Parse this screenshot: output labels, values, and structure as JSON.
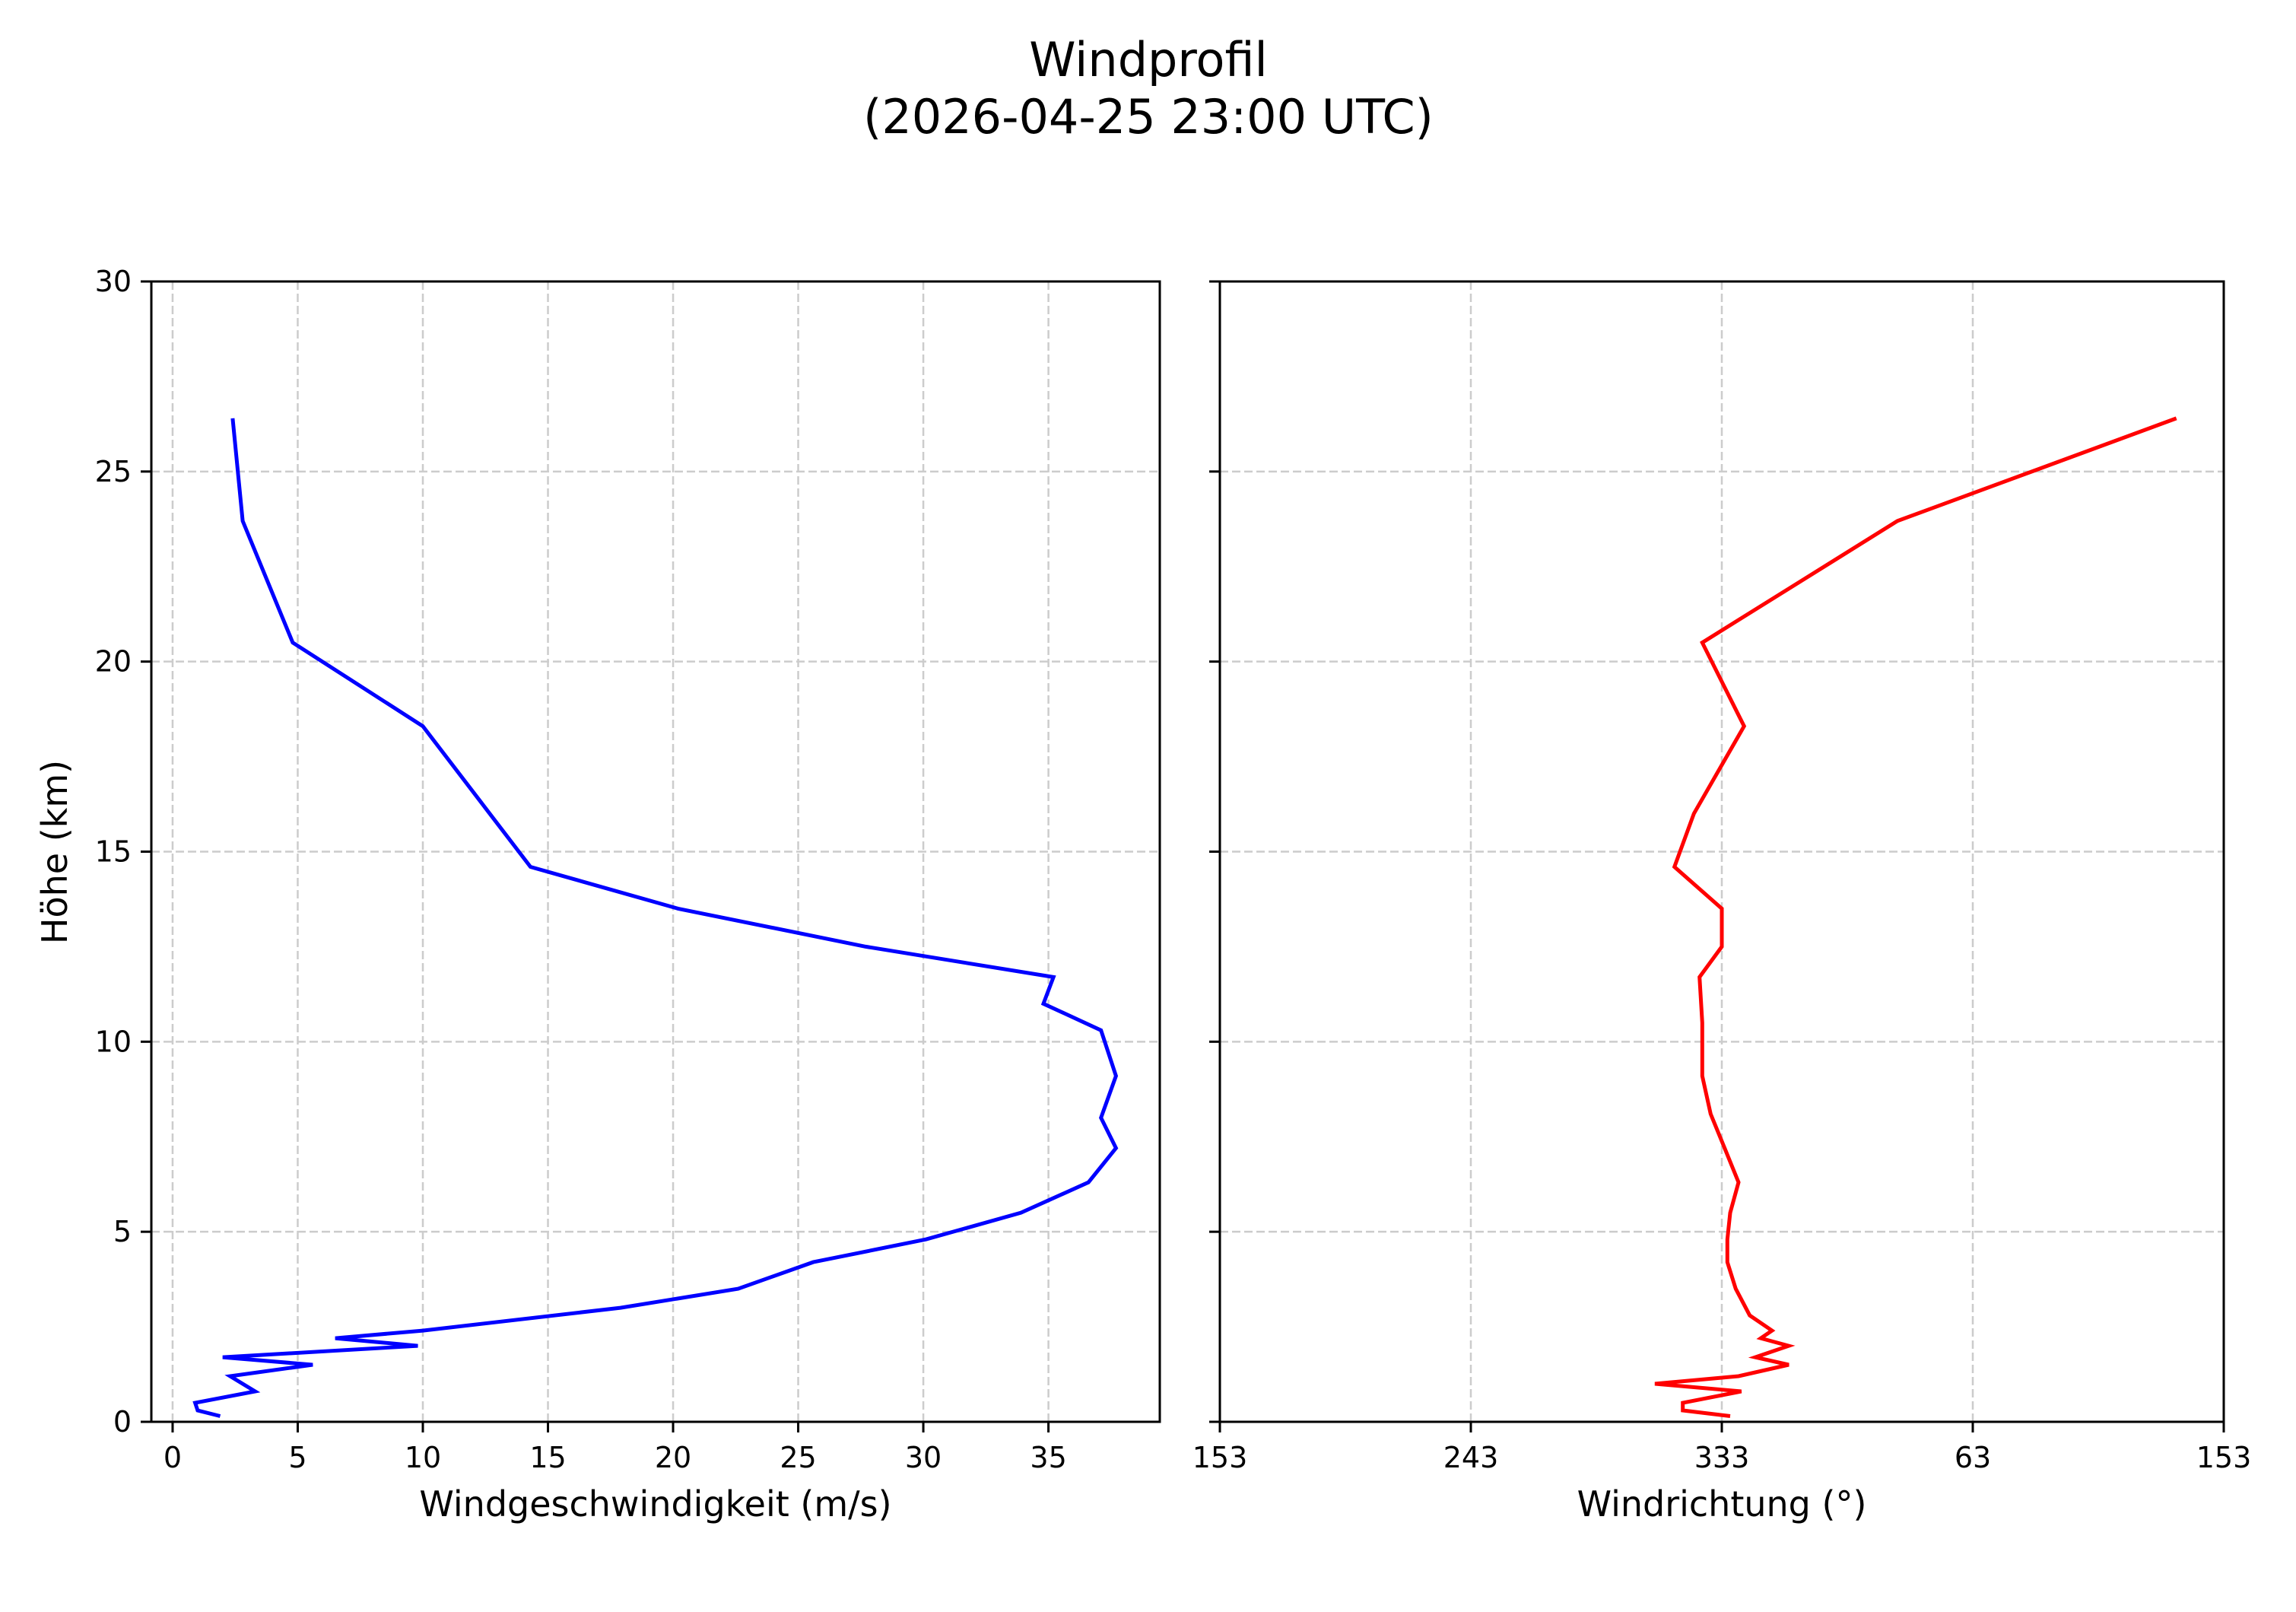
{
  "figure": {
    "title_line1": "Windprofil",
    "title_line2": "(2026-04-25 23:00 UTC)",
    "background": "#ffffff"
  },
  "chart_data": [
    {
      "type": "line",
      "panel": "left",
      "title": "Windprofil (2026-04-25 23:00 UTC)",
      "xlabel": "Windgeschwindigkeit (m/s)",
      "ylabel": "Höhe (km)",
      "xlim": [
        -0.85,
        39.45
      ],
      "ylim": [
        0,
        30
      ],
      "xticks": [
        0,
        5,
        10,
        15,
        20,
        25,
        30,
        35
      ],
      "xtick_labels": [
        "0",
        "5",
        "10",
        "15",
        "20",
        "25",
        "30",
        "35"
      ],
      "yticks": [
        0,
        5,
        10,
        15,
        20,
        25,
        30
      ],
      "ytick_labels": [
        "0",
        "5",
        "10",
        "15",
        "20",
        "25",
        "30"
      ],
      "grid": true,
      "color": "#0000ff",
      "series": [
        {
          "name": "Windgeschwindigkeit",
          "x": [
            1.9,
            1.0,
            0.9,
            3.3,
            2.3,
            5.6,
            2.0,
            9.8,
            6.5,
            10.0,
            17.9,
            22.6,
            25.6,
            30.1,
            33.9,
            36.6,
            37.7,
            37.1,
            37.7,
            37.1,
            34.8,
            35.2,
            27.7,
            20.2,
            14.3,
            10.0,
            4.8,
            2.8,
            2.4
          ],
          "y": [
            0.15,
            0.3,
            0.5,
            0.8,
            1.2,
            1.5,
            1.7,
            2.0,
            2.2,
            2.4,
            3.0,
            3.5,
            4.2,
            4.8,
            5.5,
            6.3,
            7.2,
            8.0,
            9.1,
            10.3,
            11.0,
            11.7,
            12.5,
            13.5,
            14.6,
            18.3,
            20.5,
            23.7,
            26.4
          ]
        }
      ]
    },
    {
      "type": "line",
      "panel": "right",
      "xlabel": "Windrichtung (°)",
      "ylabel": "",
      "xlim": [
        153,
        513
      ],
      "ylim": [
        0,
        30
      ],
      "xticks": [
        153,
        243,
        333,
        423,
        513
      ],
      "xtick_labels": [
        "153",
        "243",
        "333",
        "63",
        "153"
      ],
      "yticks": [
        0,
        5,
        10,
        15,
        20,
        25,
        30
      ],
      "ytick_labels_shown": false,
      "grid": true,
      "color": "#ff0000",
      "series": [
        {
          "name": "Windrichtung",
          "x": [
            336,
            319,
            319,
            340,
            309,
            339,
            357,
            345,
            357,
            347,
            351,
            343,
            338,
            335,
            335,
            336,
            339,
            334,
            329,
            326,
            326,
            325,
            333,
            333,
            316,
            323,
            341,
            326,
            396,
            496
          ],
          "x_wrapped_deg": [
            336,
            319,
            319,
            340,
            309,
            339,
            357,
            345,
            357,
            347,
            351,
            343,
            338,
            335,
            335,
            336,
            339,
            334,
            329,
            326,
            326,
            325,
            333,
            333,
            316,
            323,
            341,
            326,
            36,
            136
          ],
          "y": [
            0.15,
            0.3,
            0.5,
            0.8,
            1.0,
            1.2,
            1.5,
            1.7,
            2.0,
            2.2,
            2.4,
            2.8,
            3.5,
            4.2,
            4.8,
            5.5,
            6.3,
            7.2,
            8.1,
            9.1,
            10.5,
            11.7,
            12.5,
            13.5,
            14.6,
            16.0,
            18.3,
            20.5,
            23.7,
            26.4
          ]
        }
      ]
    }
  ]
}
